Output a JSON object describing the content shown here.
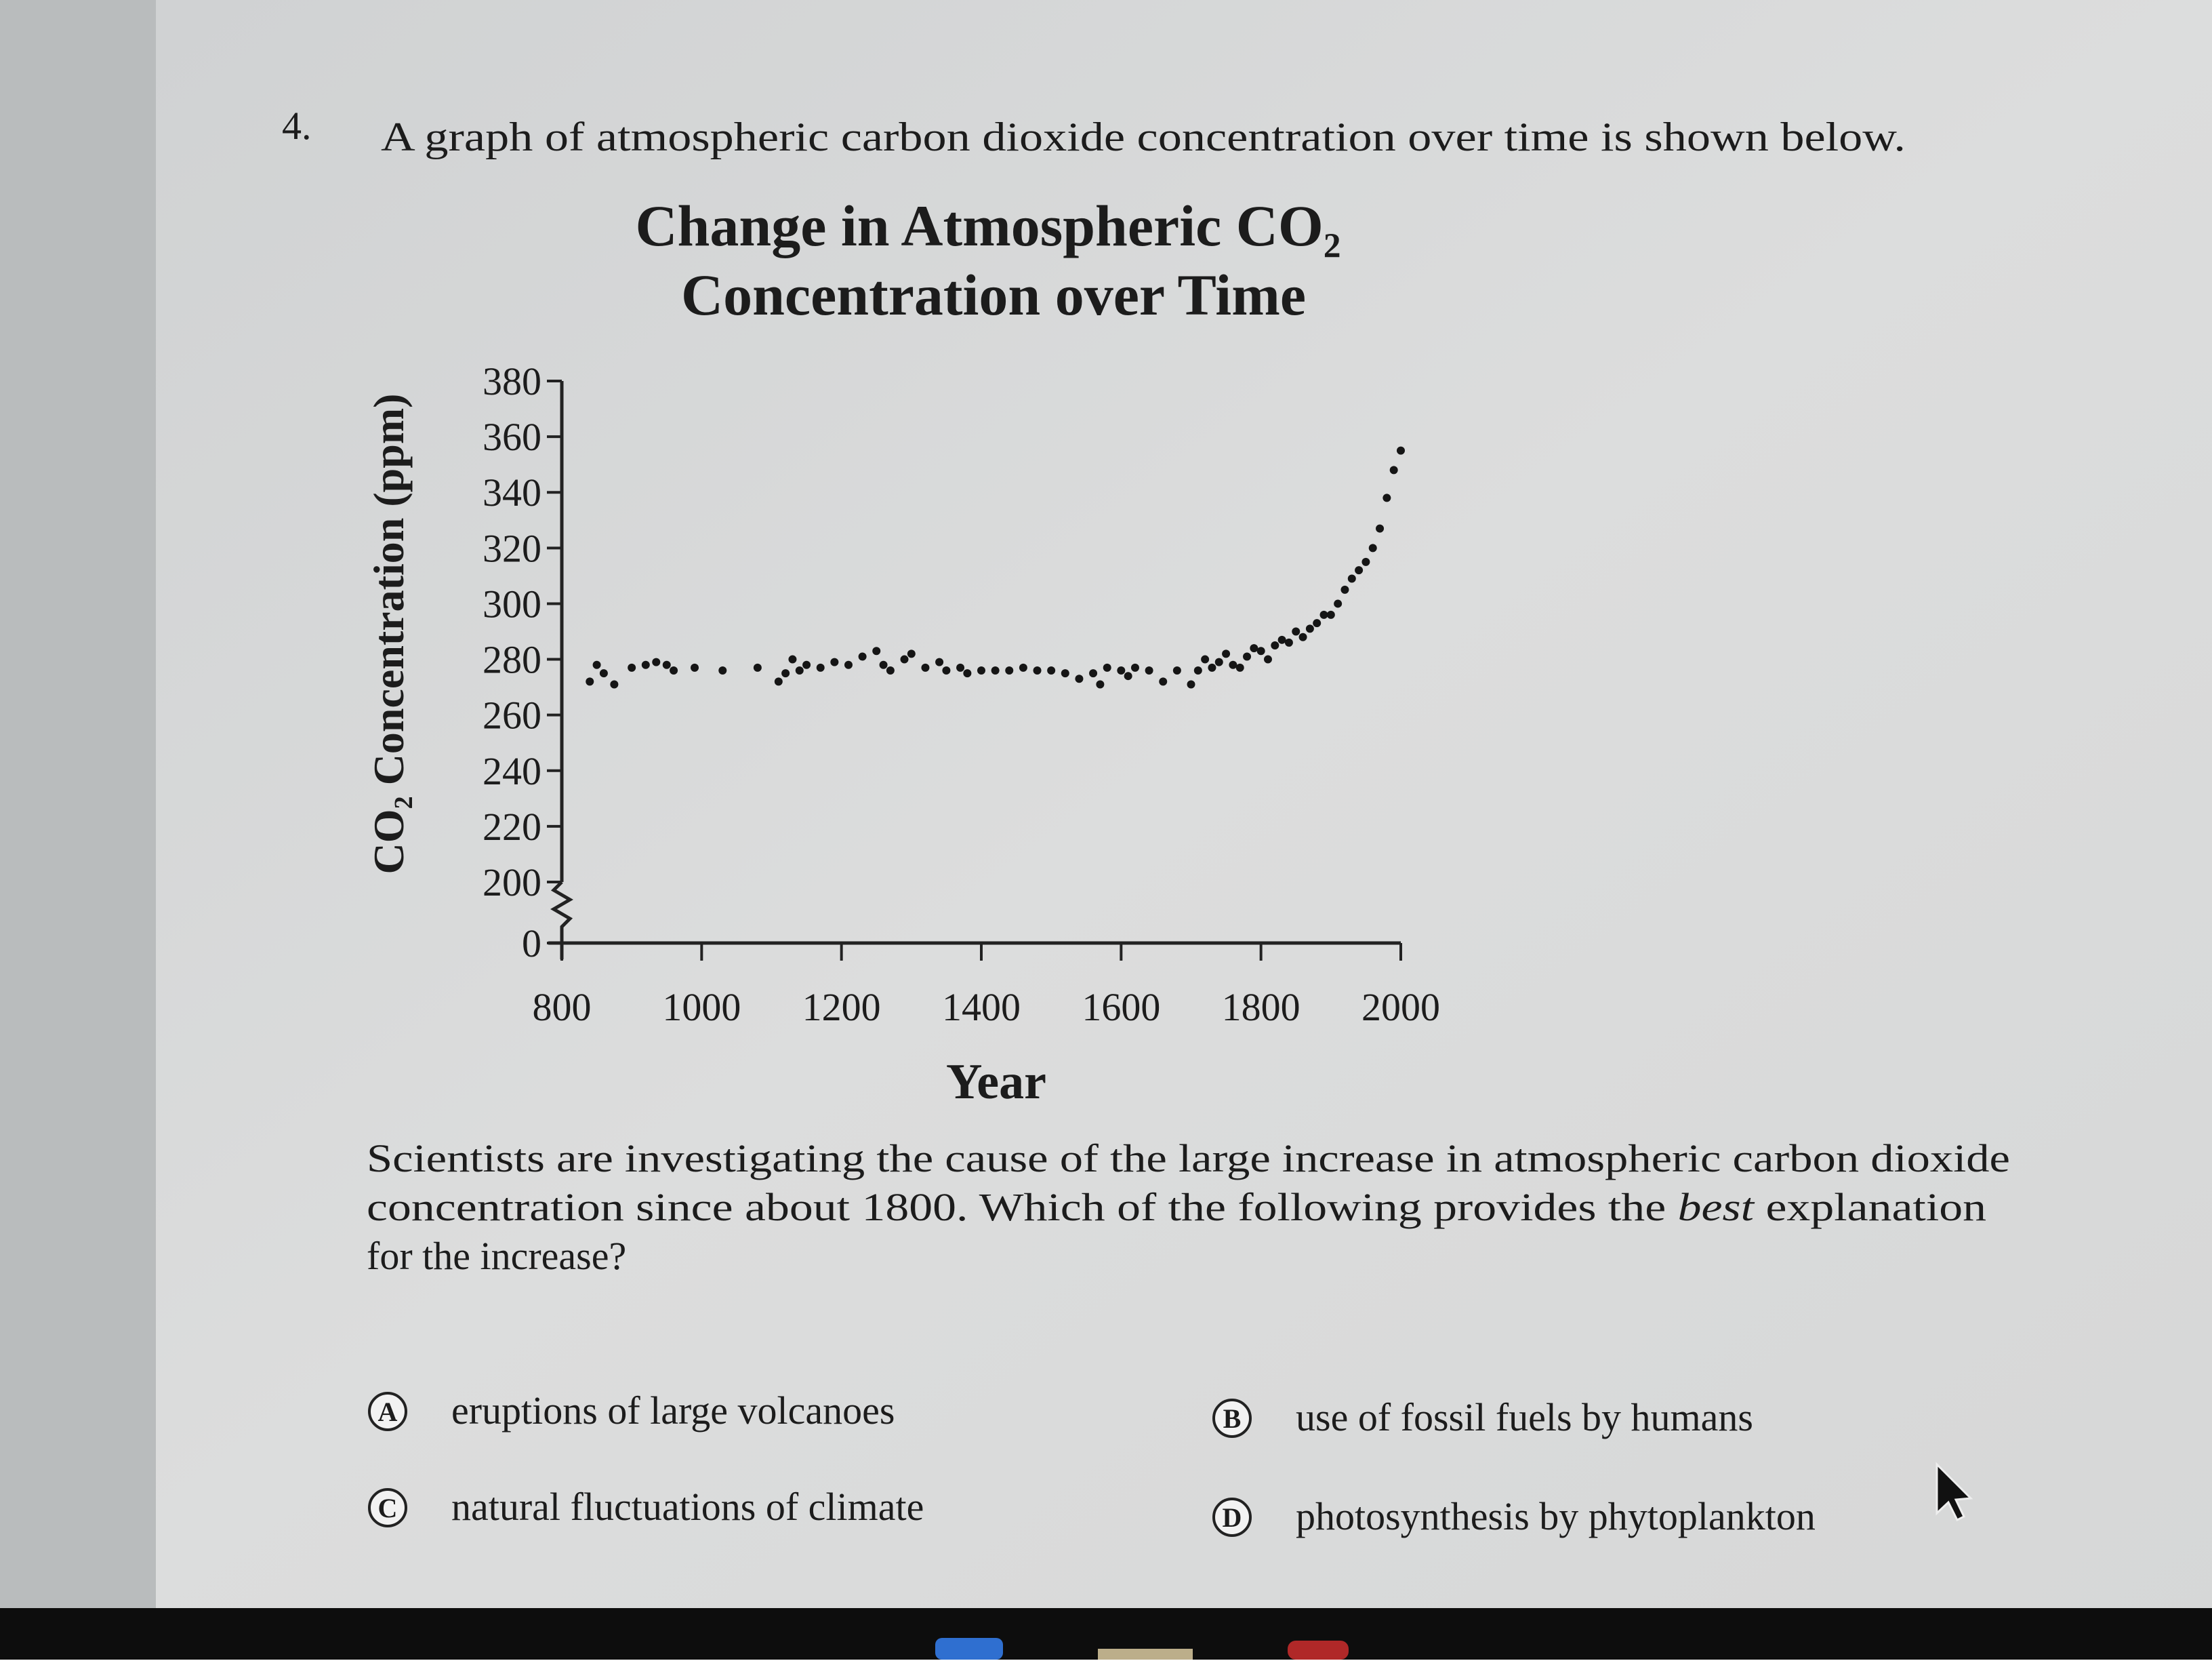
{
  "question": {
    "number": "4.",
    "prompt": "A graph of atmospheric carbon dioxide concentration over time is shown below.",
    "lines": [
      [
        "Scientists are investigating the cause of the large increase in atmospheric carbon dioxide"
      ],
      [
        "concentration since about 1800. Which of the following provides the ",
        "best",
        " explanation"
      ],
      [
        "for the increase?"
      ]
    ],
    "options": [
      {
        "letter": "A",
        "text": "eruptions of large volcanoes"
      },
      {
        "letter": "B",
        "text": "use of fossil fuels by humans"
      },
      {
        "letter": "C",
        "text": "natural fluctuations of climate"
      },
      {
        "letter": "D",
        "text": "photosynthesis by phytoplankton"
      }
    ]
  },
  "chart_data": {
    "type": "scatter",
    "title": [
      "Change in Atmospheric CO₂",
      "Concentration over Time"
    ],
    "x_label": "Year",
    "y_label": "CO₂ Concentration (ppm)",
    "xlim": [
      800,
      2000
    ],
    "xticks": [
      800,
      1000,
      1200,
      1400,
      1600,
      1800,
      2000
    ],
    "ylim": [
      0,
      380
    ],
    "yticks": [
      0,
      200,
      220,
      240,
      260,
      280,
      300,
      320,
      340,
      360,
      380
    ],
    "y_axis_break": true,
    "color": "#151515",
    "x": [
      840,
      850,
      860,
      875,
      900,
      920,
      935,
      950,
      960,
      990,
      1030,
      1080,
      1110,
      1120,
      1130,
      1140,
      1150,
      1170,
      1190,
      1210,
      1230,
      1250,
      1260,
      1270,
      1290,
      1300,
      1320,
      1340,
      1350,
      1370,
      1380,
      1400,
      1420,
      1440,
      1460,
      1480,
      1500,
      1520,
      1540,
      1560,
      1570,
      1580,
      1600,
      1610,
      1620,
      1640,
      1660,
      1680,
      1700,
      1710,
      1720,
      1730,
      1740,
      1750,
      1760,
      1770,
      1780,
      1790,
      1800,
      1810,
      1820,
      1830,
      1840,
      1850,
      1860,
      1870,
      1880,
      1890,
      1900,
      1910,
      1920,
      1930,
      1940,
      1950,
      1960,
      1970,
      1980,
      1990,
      2000
    ],
    "values": [
      272,
      278,
      275,
      271,
      277,
      278,
      279,
      278,
      276,
      277,
      276,
      277,
      272,
      275,
      280,
      276,
      278,
      277,
      279,
      278,
      281,
      283,
      278,
      276,
      280,
      282,
      277,
      279,
      276,
      277,
      275,
      276,
      276,
      276,
      277,
      276,
      276,
      275,
      273,
      275,
      271,
      277,
      276,
      274,
      277,
      276,
      272,
      276,
      271,
      276,
      280,
      277,
      279,
      282,
      278,
      277,
      281,
      284,
      283,
      280,
      285,
      287,
      286,
      290,
      288,
      291,
      293,
      296,
      296,
      300,
      305,
      309,
      312,
      315,
      320,
      327,
      338,
      348,
      355
    ]
  }
}
